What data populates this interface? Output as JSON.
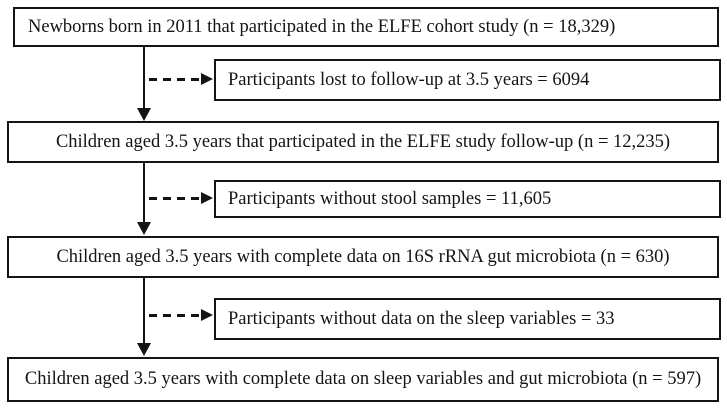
{
  "diagram": {
    "type": "flowchart",
    "main_boxes": [
      {
        "text": "Newborns born in 2011 that participated in the ELFE cohort study (n = 18,329)",
        "n": "18,329"
      },
      {
        "text": "Children aged 3.5 years that participated in the ELFE study follow-up (n = 12,235)",
        "n": "12,235"
      },
      {
        "text": "Children aged 3.5 years with complete data on 16S rRNA gut microbiota (n = 630)",
        "n": "630"
      },
      {
        "text": "Children aged 3.5 years with complete data on sleep variables and gut microbiota (n = 597)",
        "n": "597"
      }
    ],
    "exclusion_boxes": [
      {
        "text": "Participants lost to follow-up at 3.5 years = 6094",
        "n": "6094"
      },
      {
        "text": "Participants without stool samples = 11,605",
        "n": "11,605"
      },
      {
        "text": "Participants without data on the sleep variables = 33",
        "n": "33"
      }
    ],
    "colors": {
      "border": "#141414",
      "text": "#141414",
      "background": "#ffffff"
    }
  }
}
